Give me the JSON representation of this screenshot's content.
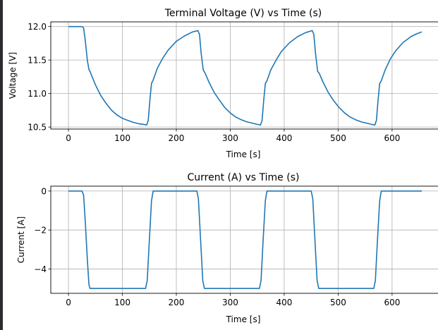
{
  "chart_data": [
    {
      "type": "line",
      "title": "Terminal Voltage (V) vs Time (s)",
      "xlabel": "Time [s]",
      "ylabel": "Voltage [V]",
      "xlim": [
        -32.75,
        687.75
      ],
      "ylim": [
        10.47,
        12.07
      ],
      "xticks": [
        0,
        100,
        200,
        300,
        400,
        500,
        600
      ],
      "yticks": [
        10.5,
        11.0,
        11.5,
        12.0
      ],
      "ytick_labels": [
        "10.5",
        "11.0",
        "11.5",
        "12.0"
      ],
      "grid": true,
      "color": "#1f77b4",
      "x": [
        0,
        25,
        28,
        31,
        35,
        38,
        40,
        50,
        60,
        70,
        80,
        90,
        100,
        110,
        120,
        130,
        140,
        145,
        148,
        151,
        154,
        157,
        165,
        175,
        185,
        200,
        215,
        230,
        240,
        243,
        246,
        250,
        253,
        260,
        270,
        280,
        290,
        300,
        310,
        320,
        330,
        340,
        350,
        356,
        359,
        362,
        365,
        368,
        375,
        385,
        395,
        410,
        425,
        440,
        452,
        455,
        458,
        462,
        465,
        472,
        482,
        492,
        502,
        512,
        522,
        532,
        542,
        552,
        562,
        568,
        571,
        574,
        577,
        580,
        587,
        597,
        607,
        620,
        635,
        645,
        655
      ],
      "y": [
        12.0,
        12.0,
        11.98,
        11.8,
        11.5,
        11.36,
        11.33,
        11.13,
        10.97,
        10.85,
        10.75,
        10.68,
        10.63,
        10.6,
        10.57,
        10.55,
        10.54,
        10.53,
        10.6,
        10.9,
        11.15,
        11.2,
        11.38,
        11.53,
        11.65,
        11.78,
        11.86,
        11.92,
        11.94,
        11.88,
        11.6,
        11.35,
        11.31,
        11.18,
        11.02,
        10.9,
        10.79,
        10.71,
        10.65,
        10.61,
        10.58,
        10.56,
        10.54,
        10.53,
        10.6,
        10.9,
        11.15,
        11.19,
        11.35,
        11.5,
        11.63,
        11.76,
        11.85,
        11.91,
        11.94,
        11.88,
        11.6,
        11.33,
        11.3,
        11.17,
        11.01,
        10.89,
        10.79,
        10.71,
        10.65,
        10.61,
        10.58,
        10.56,
        10.54,
        10.53,
        10.6,
        10.9,
        11.15,
        11.19,
        11.35,
        11.52,
        11.64,
        11.76,
        11.85,
        11.89,
        11.92
      ]
    },
    {
      "type": "line",
      "title": "Current (A) vs Time (s)",
      "xlabel": "Time [s]",
      "ylabel": "Current [A]",
      "xlim": [
        -32.75,
        687.75
      ],
      "ylim": [
        -5.25,
        0.25
      ],
      "xticks": [
        0,
        100,
        200,
        300,
        400,
        500,
        600
      ],
      "yticks": [
        -4,
        -2,
        0
      ],
      "ytick_labels": [
        "−4",
        "−2",
        "0"
      ],
      "grid": true,
      "color": "#1f77b4",
      "x": [
        0,
        25,
        28,
        31,
        35,
        38,
        40,
        143,
        146,
        150,
        154,
        157,
        238,
        241,
        245,
        249,
        252,
        354,
        357,
        361,
        365,
        368,
        450,
        453,
        457,
        461,
        464,
        566,
        569,
        573,
        577,
        580,
        655
      ],
      "y": [
        0,
        0,
        -0.2,
        -1.5,
        -3.5,
        -4.8,
        -5,
        -5,
        -4.6,
        -2.5,
        -0.5,
        0,
        0,
        -0.4,
        -2.5,
        -4.6,
        -5,
        -5,
        -4.6,
        -2.5,
        -0.5,
        0,
        0,
        -0.4,
        -2.5,
        -4.6,
        -5,
        -5,
        -4.6,
        -2.5,
        -0.5,
        0,
        0
      ]
    }
  ]
}
